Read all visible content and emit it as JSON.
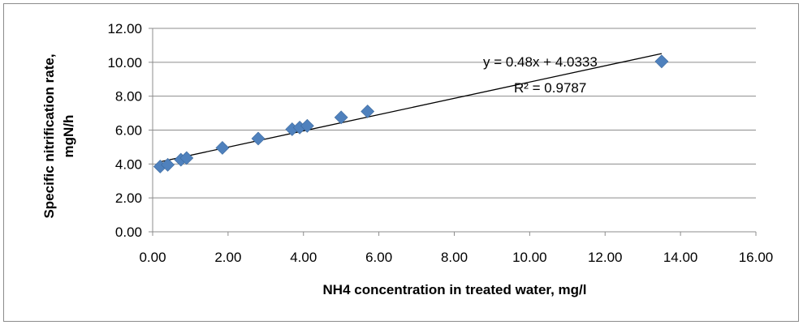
{
  "chart_data": {
    "type": "scatter",
    "title": "",
    "xlabel": "NH4 concentration in treated water, mg/l",
    "ylabel_line1": "Specific nitrification rate,",
    "ylabel_line2": "mgN/h",
    "xlim": [
      0,
      16
    ],
    "ylim": [
      0,
      12
    ],
    "x_ticks": [
      "0.00",
      "2.00",
      "4.00",
      "6.00",
      "8.00",
      "10.00",
      "12.00",
      "14.00",
      "16.00"
    ],
    "y_ticks": [
      "0.00",
      "2.00",
      "4.00",
      "6.00",
      "8.00",
      "10.00",
      "12.00"
    ],
    "grid": "horizontal",
    "legend": "none",
    "series": [
      {
        "color": "#4F81BD",
        "marker": "diamond",
        "points": [
          {
            "x": 0.2,
            "y": 3.85
          },
          {
            "x": 0.4,
            "y": 3.95
          },
          {
            "x": 0.75,
            "y": 4.25
          },
          {
            "x": 0.9,
            "y": 4.35
          },
          {
            "x": 1.85,
            "y": 4.95
          },
          {
            "x": 2.8,
            "y": 5.5
          },
          {
            "x": 3.7,
            "y": 6.05
          },
          {
            "x": 3.9,
            "y": 6.15
          },
          {
            "x": 4.1,
            "y": 6.25
          },
          {
            "x": 5.0,
            "y": 6.75
          },
          {
            "x": 5.7,
            "y": 7.1
          },
          {
            "x": 13.5,
            "y": 10.05
          }
        ]
      }
    ],
    "trendline": {
      "slope": 0.48,
      "intercept": 4.0333,
      "x_range": [
        0.2,
        13.5
      ],
      "color": "#000000",
      "equation_label": "y = 0.48x + 4.0333",
      "r2_label": "R² = 0.9787"
    }
  }
}
